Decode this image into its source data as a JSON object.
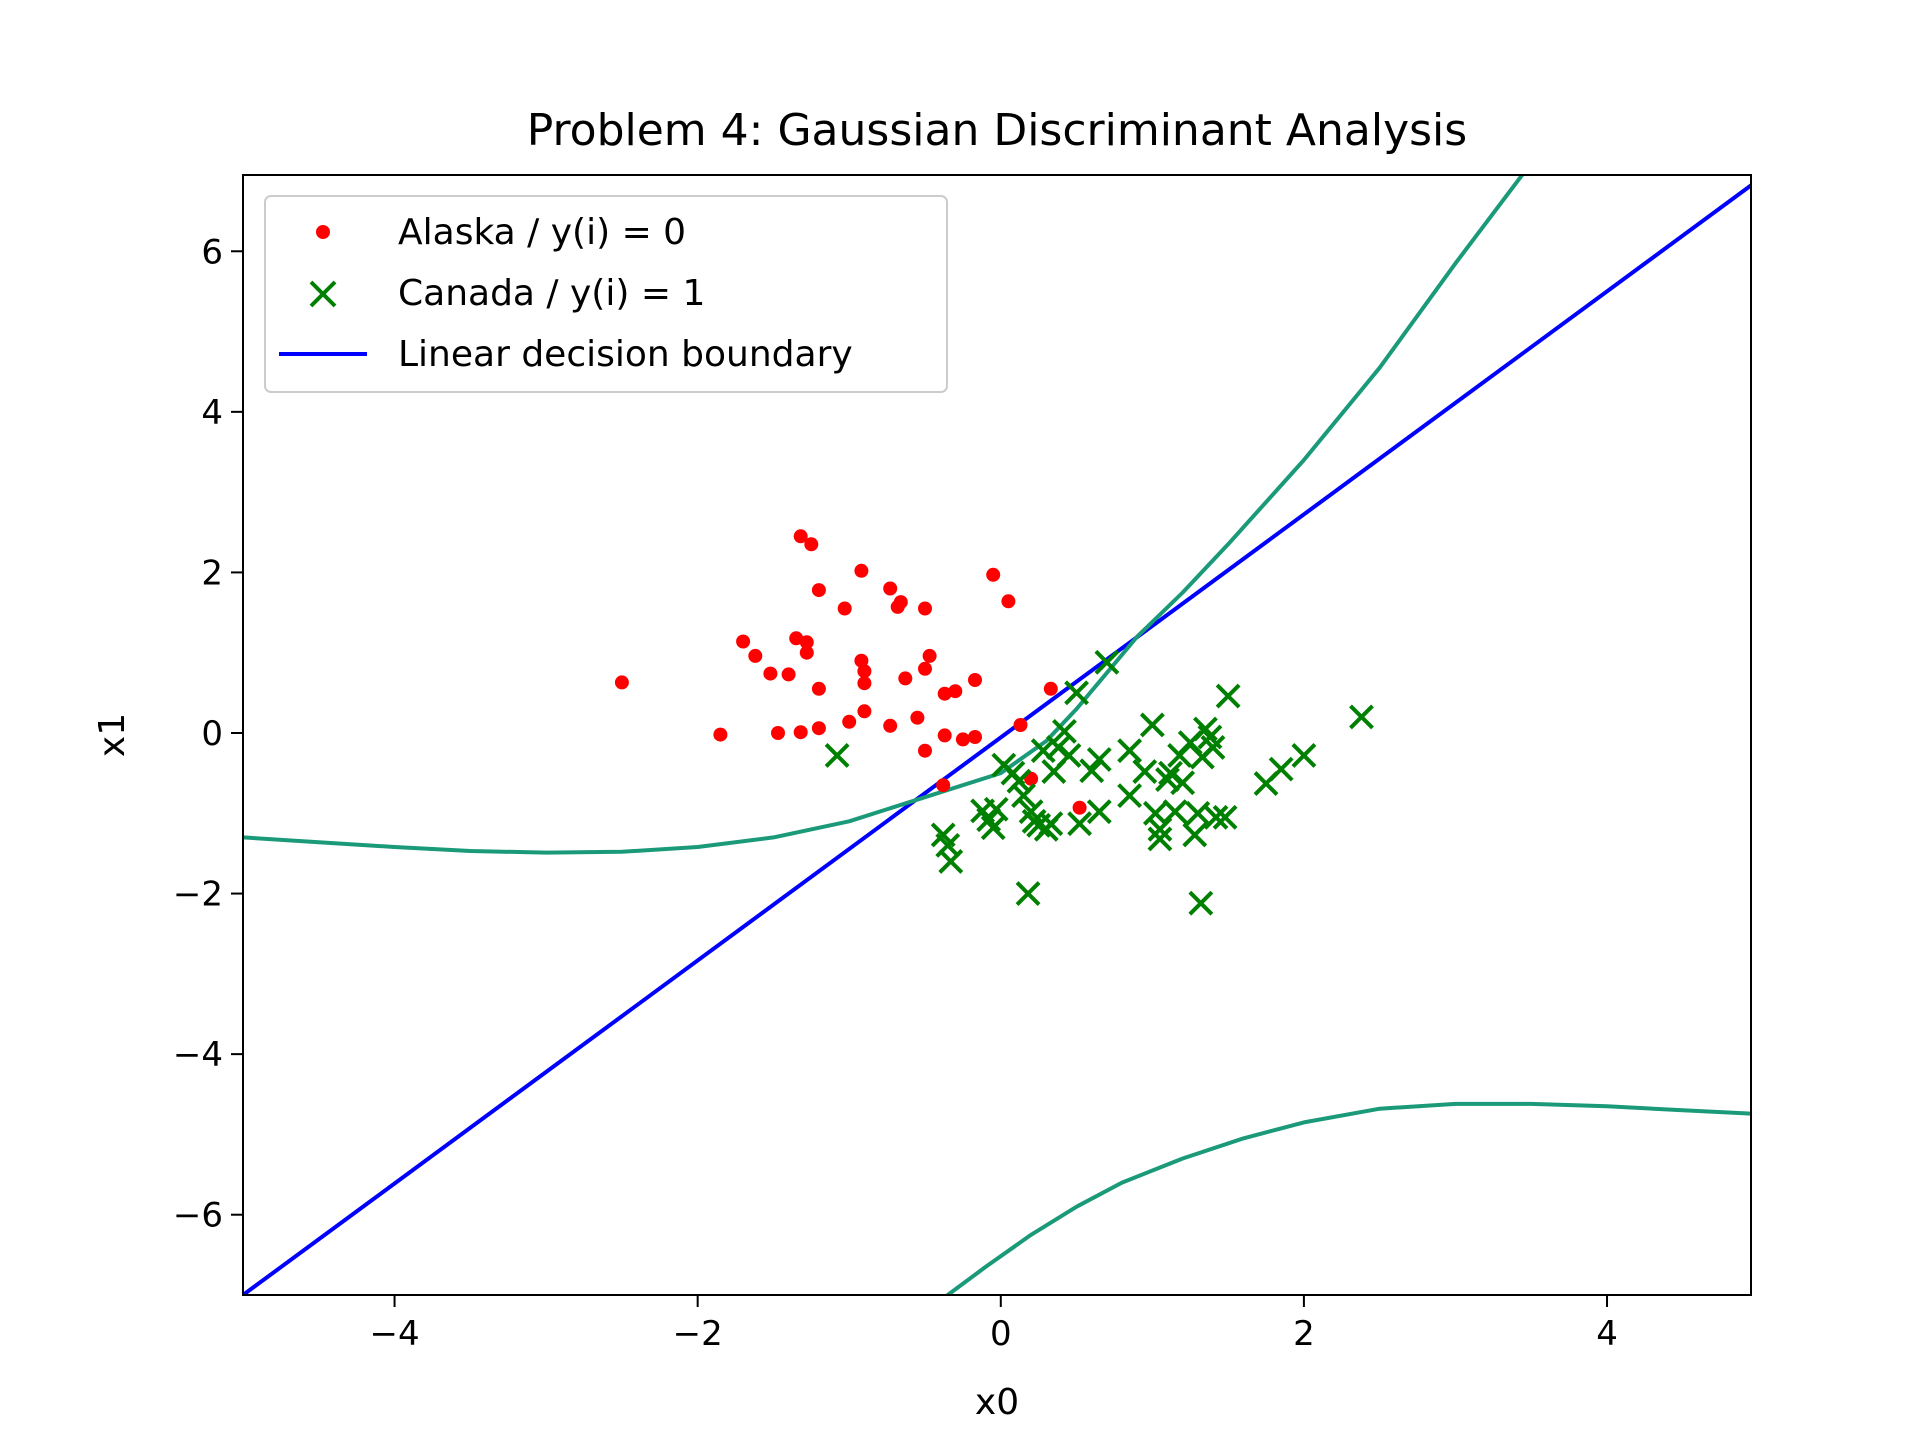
{
  "chart_data": {
    "type": "scatter",
    "title": "Problem 4: Gaussian Discriminant Analysis",
    "xlabel": "x0",
    "ylabel": "x1",
    "xlim": [
      -5.0,
      4.95
    ],
    "ylim": [
      -7.0,
      6.95
    ],
    "xticks": [
      {
        "value": -4,
        "label": "−4"
      },
      {
        "value": -2,
        "label": "−2"
      },
      {
        "value": 0,
        "label": "0"
      },
      {
        "value": 2,
        "label": "2"
      },
      {
        "value": 4,
        "label": "4"
      }
    ],
    "yticks": [
      {
        "value": -6,
        "label": "−6"
      },
      {
        "value": -4,
        "label": "−4"
      },
      {
        "value": -2,
        "label": "−2"
      },
      {
        "value": 0,
        "label": "0"
      },
      {
        "value": 2,
        "label": "2"
      },
      {
        "value": 4,
        "label": "4"
      },
      {
        "value": 6,
        "label": "6"
      }
    ],
    "grid": false,
    "legend_position": "top-left",
    "series": [
      {
        "name": "Alaska / y(i) = 0",
        "kind": "scatter",
        "marker": "dot",
        "color": "#ff0000",
        "points": [
          [
            -2.5,
            0.63
          ],
          [
            -1.85,
            -0.02
          ],
          [
            -1.7,
            1.14
          ],
          [
            -1.62,
            0.96
          ],
          [
            -1.52,
            0.74
          ],
          [
            -1.47,
            0.0
          ],
          [
            -1.4,
            0.73
          ],
          [
            -1.35,
            1.18
          ],
          [
            -1.32,
            2.45
          ],
          [
            -1.32,
            0.01
          ],
          [
            -1.28,
            1.13
          ],
          [
            -1.28,
            1.0
          ],
          [
            -1.25,
            2.35
          ],
          [
            -1.2,
            1.78
          ],
          [
            -1.2,
            0.55
          ],
          [
            -1.2,
            0.06
          ],
          [
            -1.03,
            1.55
          ],
          [
            -1.0,
            0.14
          ],
          [
            -0.92,
            2.02
          ],
          [
            -0.92,
            0.9
          ],
          [
            -0.9,
            0.77
          ],
          [
            -0.9,
            0.62
          ],
          [
            -0.9,
            0.27
          ],
          [
            -0.73,
            1.8
          ],
          [
            -0.73,
            0.09
          ],
          [
            -0.68,
            1.57
          ],
          [
            -0.66,
            1.63
          ],
          [
            -0.63,
            0.68
          ],
          [
            -0.55,
            0.19
          ],
          [
            -0.5,
            1.55
          ],
          [
            -0.5,
            0.8
          ],
          [
            -0.5,
            -0.22
          ],
          [
            -0.47,
            0.96
          ],
          [
            -0.37,
            0.49
          ],
          [
            -0.37,
            -0.03
          ],
          [
            -0.3,
            0.52
          ],
          [
            -0.25,
            -0.08
          ],
          [
            -0.17,
            0.66
          ],
          [
            -0.17,
            -0.05
          ],
          [
            -0.05,
            1.97
          ],
          [
            0.05,
            1.64
          ],
          [
            0.13,
            0.1
          ],
          [
            0.2,
            -0.57
          ],
          [
            0.33,
            0.55
          ],
          [
            0.52,
            -0.93
          ],
          [
            -0.38,
            -0.65
          ]
        ]
      },
      {
        "name": "Canada / y(i) = 1",
        "kind": "scatter",
        "marker": "x",
        "color": "#008000",
        "points": [
          [
            -1.08,
            -0.28
          ],
          [
            -0.38,
            -1.27
          ],
          [
            -0.35,
            -1.4
          ],
          [
            -0.33,
            -1.6
          ],
          [
            -0.12,
            -0.97
          ],
          [
            -0.08,
            -1.08
          ],
          [
            -0.05,
            -1.18
          ],
          [
            -0.03,
            -0.95
          ],
          [
            0.02,
            -0.4
          ],
          [
            0.08,
            -0.5
          ],
          [
            0.12,
            -0.6
          ],
          [
            0.15,
            -0.78
          ],
          [
            0.18,
            -2.0
          ],
          [
            0.2,
            -0.98
          ],
          [
            0.22,
            -1.1
          ],
          [
            0.25,
            -1.15
          ],
          [
            0.28,
            -0.22
          ],
          [
            0.3,
            -1.2
          ],
          [
            0.33,
            -1.13
          ],
          [
            0.35,
            -0.48
          ],
          [
            0.38,
            -0.18
          ],
          [
            0.42,
            0.02
          ],
          [
            0.45,
            -0.28
          ],
          [
            0.5,
            0.5
          ],
          [
            0.52,
            -1.13
          ],
          [
            0.6,
            -0.47
          ],
          [
            0.65,
            -0.33
          ],
          [
            0.65,
            -0.98
          ],
          [
            0.7,
            0.88
          ],
          [
            0.85,
            -0.22
          ],
          [
            0.85,
            -0.78
          ],
          [
            0.95,
            -0.48
          ],
          [
            1.0,
            0.1
          ],
          [
            1.02,
            -1.0
          ],
          [
            1.05,
            -1.2
          ],
          [
            1.05,
            -1.32
          ],
          [
            1.1,
            -0.58
          ],
          [
            1.12,
            -0.5
          ],
          [
            1.15,
            -0.98
          ],
          [
            1.18,
            -0.28
          ],
          [
            1.2,
            -0.62
          ],
          [
            1.25,
            -0.12
          ],
          [
            1.28,
            -1.27
          ],
          [
            1.3,
            -1.0
          ],
          [
            1.32,
            -2.12
          ],
          [
            1.33,
            -0.3
          ],
          [
            1.35,
            0.05
          ],
          [
            1.38,
            -0.05
          ],
          [
            1.4,
            -0.18
          ],
          [
            1.42,
            -1.05
          ],
          [
            1.48,
            -1.05
          ],
          [
            1.5,
            0.46
          ],
          [
            1.75,
            -0.63
          ],
          [
            1.85,
            -0.45
          ],
          [
            2.0,
            -0.28
          ],
          [
            2.38,
            0.2
          ]
        ]
      },
      {
        "name": "Linear decision boundary",
        "kind": "line",
        "color": "#0000ff",
        "points": [
          [
            -5.0,
            -7.0
          ],
          [
            4.95,
            6.82
          ]
        ]
      },
      {
        "kind": "line",
        "color": "#1a9a78",
        "points": [
          [
            -5.0,
            -1.3
          ],
          [
            -4.5,
            -1.36
          ],
          [
            -4.0,
            -1.42
          ],
          [
            -3.5,
            -1.47
          ],
          [
            -3.0,
            -1.49
          ],
          [
            -2.5,
            -1.48
          ],
          [
            -2.0,
            -1.42
          ],
          [
            -1.5,
            -1.3
          ],
          [
            -1.0,
            -1.1
          ],
          [
            -0.5,
            -0.8
          ],
          [
            0.0,
            -0.5
          ],
          [
            0.3,
            -0.1
          ],
          [
            0.5,
            0.3
          ],
          [
            0.7,
            0.75
          ],
          [
            0.9,
            1.2
          ],
          [
            1.2,
            1.75
          ],
          [
            1.5,
            2.35
          ],
          [
            2.0,
            3.4
          ],
          [
            2.5,
            4.55
          ],
          [
            3.0,
            5.85
          ],
          [
            3.5,
            7.1
          ]
        ]
      },
      {
        "kind": "line",
        "color": "#1a9a78",
        "points": [
          [
            -0.35,
            -7.0
          ],
          [
            -0.1,
            -6.65
          ],
          [
            0.2,
            -6.25
          ],
          [
            0.5,
            -5.9
          ],
          [
            0.8,
            -5.6
          ],
          [
            1.2,
            -5.3
          ],
          [
            1.6,
            -5.05
          ],
          [
            2.0,
            -4.85
          ],
          [
            2.5,
            -4.68
          ],
          [
            3.0,
            -4.62
          ],
          [
            3.5,
            -4.62
          ],
          [
            4.0,
            -4.65
          ],
          [
            4.5,
            -4.7
          ],
          [
            4.95,
            -4.74
          ]
        ]
      }
    ]
  }
}
